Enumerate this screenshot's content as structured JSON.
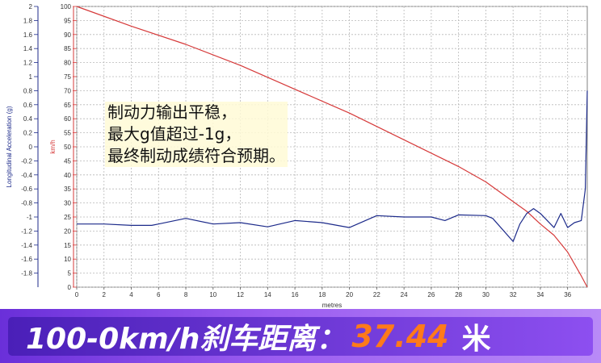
{
  "chart_data": {
    "type": "line",
    "xlabel": "metres",
    "x_ticks": [
      0,
      2,
      4,
      6,
      8,
      10,
      12,
      14,
      16,
      18,
      20,
      22,
      24,
      26,
      28,
      30,
      32,
      34,
      36
    ],
    "xlim": [
      0,
      37.44
    ],
    "y_left": {
      "label": "Longitudinal Acceleration (g)",
      "color": "#1c2a8a",
      "ylim": [
        -2,
        2
      ],
      "ticks": [
        "2",
        "1.8",
        "1.6",
        "1.4",
        "1.2",
        "1",
        "0.8",
        "0.6",
        "0.4",
        "0.2",
        "0",
        "-0.2",
        "-0.4",
        "-0.6",
        "-0.8",
        "-1",
        "-1.2",
        "-1.4",
        "-1.6",
        "-1.8"
      ]
    },
    "y_right": {
      "label": "km/h",
      "color": "#d63a3a",
      "ylim": [
        0,
        100
      ],
      "ticks": [
        100,
        95,
        90,
        85,
        80,
        75,
        70,
        65,
        60,
        55,
        50,
        45,
        40,
        35,
        30,
        25,
        20,
        15,
        10,
        5,
        0
      ]
    },
    "grid": true,
    "series": [
      {
        "axis": "right",
        "color": "#d63a3a",
        "x": [
          0,
          4,
          8,
          12,
          16,
          20,
          24,
          28,
          30,
          32,
          33,
          34,
          35,
          36,
          37,
          37.44
        ],
        "y": [
          100,
          93,
          86.5,
          79,
          70.5,
          62,
          52.5,
          43,
          37.5,
          30.5,
          27,
          22.5,
          18.5,
          12.5,
          4,
          0
        ]
      },
      {
        "axis": "left",
        "color": "#1c2a8a",
        "x": [
          0,
          2,
          4,
          5.5,
          6,
          8,
          10,
          12,
          14,
          16,
          18,
          20,
          22,
          24,
          26,
          27,
          28,
          30,
          30.5,
          32,
          32.5,
          33,
          33.5,
          34,
          35,
          35.5,
          36,
          36.5,
          37,
          37.3,
          37.44
        ],
        "y": [
          -1.1,
          -1.1,
          -1.12,
          -1.12,
          -1.1,
          -1.02,
          -1.1,
          -1.08,
          -1.14,
          -1.05,
          -1.08,
          -1.15,
          -0.98,
          -1.0,
          -1.0,
          -1.05,
          -0.97,
          -0.98,
          -1.02,
          -1.35,
          -1.1,
          -0.95,
          -0.88,
          -0.95,
          -1.15,
          -0.95,
          -1.15,
          -1.08,
          -1.05,
          -0.6,
          0.8
        ]
      }
    ]
  },
  "annotation": {
    "line1": "制动力输出平稳，",
    "line2": "最大g值超过-1g，",
    "line3": "最终制动成绩符合预期。"
  },
  "banner": {
    "label": "100-0km/h刹车距离：",
    "value": "37.44",
    "unit": "米"
  }
}
